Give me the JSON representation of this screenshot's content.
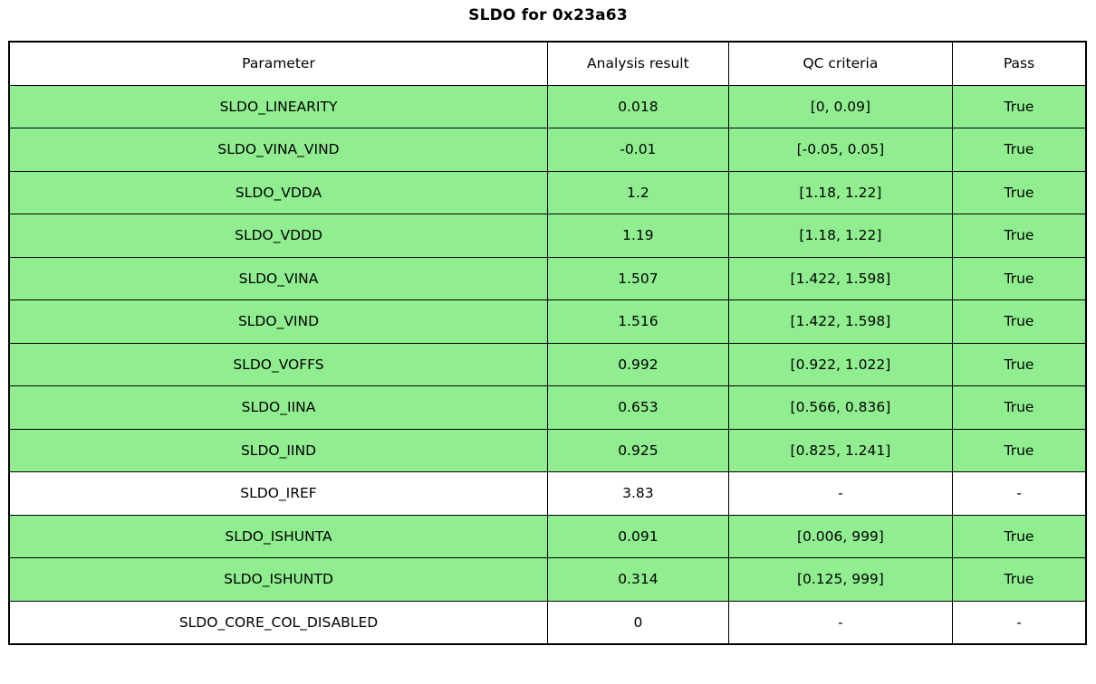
{
  "title": "SLDO for 0x23a63",
  "colors": {
    "pass_row": "#90EE90",
    "neutral_row": "#FFFFFF",
    "border": "#000000",
    "text": "#000000",
    "background": "#FFFFFF"
  },
  "chart_data": {
    "type": "table",
    "title": "SLDO for 0x23a63",
    "columns": [
      "Parameter",
      "Analysis result",
      "QC criteria",
      "Pass"
    ],
    "rows": [
      {
        "parameter": "SLDO_LINEARITY",
        "result": "0.018",
        "criteria": "[0, 0.09]",
        "pass": "True",
        "highlight": true
      },
      {
        "parameter": "SLDO_VINA_VIND",
        "result": "-0.01",
        "criteria": "[-0.05, 0.05]",
        "pass": "True",
        "highlight": true
      },
      {
        "parameter": "SLDO_VDDA",
        "result": "1.2",
        "criteria": "[1.18, 1.22]",
        "pass": "True",
        "highlight": true
      },
      {
        "parameter": "SLDO_VDDD",
        "result": "1.19",
        "criteria": "[1.18, 1.22]",
        "pass": "True",
        "highlight": true
      },
      {
        "parameter": "SLDO_VINA",
        "result": "1.507",
        "criteria": "[1.422, 1.598]",
        "pass": "True",
        "highlight": true
      },
      {
        "parameter": "SLDO_VIND",
        "result": "1.516",
        "criteria": "[1.422, 1.598]",
        "pass": "True",
        "highlight": true
      },
      {
        "parameter": "SLDO_VOFFS",
        "result": "0.992",
        "criteria": "[0.922, 1.022]",
        "pass": "True",
        "highlight": true
      },
      {
        "parameter": "SLDO_IINA",
        "result": "0.653",
        "criteria": "[0.566, 0.836]",
        "pass": "True",
        "highlight": true
      },
      {
        "parameter": "SLDO_IIND",
        "result": "0.925",
        "criteria": "[0.825, 1.241]",
        "pass": "True",
        "highlight": true
      },
      {
        "parameter": "SLDO_IREF",
        "result": "3.83",
        "criteria": "-",
        "pass": "-",
        "highlight": false
      },
      {
        "parameter": "SLDO_ISHUNTA",
        "result": "0.091",
        "criteria": "[0.006, 999]",
        "pass": "True",
        "highlight": true
      },
      {
        "parameter": "SLDO_ISHUNTD",
        "result": "0.314",
        "criteria": "[0.125, 999]",
        "pass": "True",
        "highlight": true
      },
      {
        "parameter": "SLDO_CORE_COL_DISABLED",
        "result": "0",
        "criteria": "-",
        "pass": "-",
        "highlight": false
      }
    ]
  }
}
